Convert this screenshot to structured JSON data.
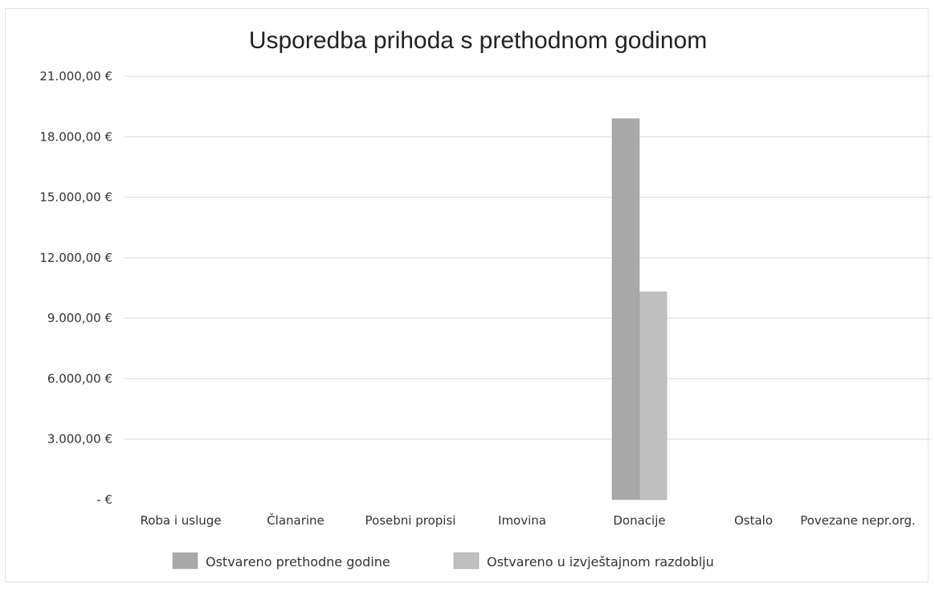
{
  "chart_data": {
    "type": "bar",
    "title": "Usporedba prihoda s prethodnom godinom",
    "xlabel": "",
    "ylabel": "",
    "categories": [
      "Roba i usluge",
      "Članarine",
      "Posebni propisi",
      "Imovina",
      "Donacije",
      "Ostalo",
      "Povezane nepr.org."
    ],
    "series": [
      {
        "name": "Ostvareno prethodne godine",
        "values": [
          0,
          0,
          0,
          0,
          18900,
          0,
          0
        ],
        "color": "#a9a9a9"
      },
      {
        "name": "Ostvareno u izvještajnom razdoblju",
        "values": [
          0,
          0,
          0,
          0,
          10300,
          0,
          0
        ],
        "color": "#c0c0c0"
      }
    ],
    "ylim": [
      0,
      21000
    ],
    "yticks": [
      0,
      3000,
      6000,
      9000,
      12000,
      15000,
      18000,
      21000
    ],
    "ytick_labels": [
      "-  €",
      "3.000,00 €",
      "6.000,00 €",
      "9.000,00 €",
      "12.000,00 €",
      "15.000,00 €",
      "18.000,00 €",
      "21.000,00 €"
    ],
    "grid": true,
    "legend_position": "bottom"
  }
}
